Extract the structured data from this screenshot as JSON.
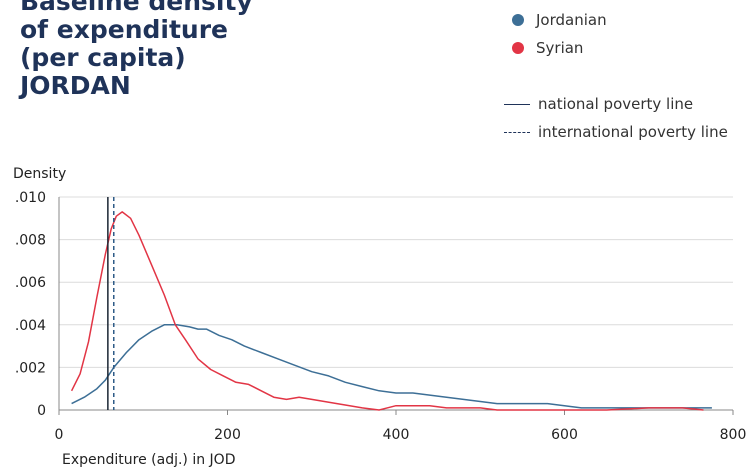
{
  "title_lines": [
    "Baseline density",
    "of expenditure",
    "(per capita)",
    "JORDAN"
  ],
  "legend": {
    "series": [
      {
        "label": "Jordanian",
        "color": "#3d6f96"
      },
      {
        "label": "Syrian",
        "color": "#e23545"
      }
    ],
    "lines": [
      {
        "label": "national poverty line",
        "style": "solid"
      },
      {
        "label": "international poverty line",
        "style": "dashed"
      }
    ]
  },
  "chart_data": {
    "type": "line",
    "title": "Baseline density of expenditure (per capita) JORDAN",
    "xlabel": "Expenditure (adj.) in JOD",
    "ylabel": "Density",
    "xlim": [
      0,
      800
    ],
    "ylim": [
      0,
      0.01
    ],
    "xticks": [
      {
        "v": 0,
        "label": "0"
      },
      {
        "v": 200,
        "label": "200"
      },
      {
        "v": 400,
        "label": "400"
      },
      {
        "v": 600,
        "label": "600"
      },
      {
        "v": 800,
        "label": "800"
      }
    ],
    "yticks": [
      {
        "v": 0,
        "label": "0"
      },
      {
        "v": 0.002,
        "label": ".002"
      },
      {
        "v": 0.004,
        "label": ".004"
      },
      {
        "v": 0.006,
        "label": ".006"
      },
      {
        "v": 0.008,
        "label": ".008"
      },
      {
        "v": 0.01,
        "label": ".010"
      }
    ],
    "grid": true,
    "vlines": [
      {
        "name": "national poverty line",
        "x": 58,
        "style": "solid",
        "color": "#1a2533"
      },
      {
        "name": "international poverty line",
        "x": 65,
        "style": "dashed",
        "color": "#2d5b87"
      }
    ],
    "series": [
      {
        "name": "Jordanian",
        "color": "#3d6f96",
        "points": [
          [
            15,
            0.0003
          ],
          [
            30,
            0.0006
          ],
          [
            45,
            0.001
          ],
          [
            55,
            0.0014
          ],
          [
            65,
            0.002
          ],
          [
            80,
            0.0027
          ],
          [
            95,
            0.0033
          ],
          [
            110,
            0.0037
          ],
          [
            125,
            0.004
          ],
          [
            140,
            0.004
          ],
          [
            155,
            0.0039
          ],
          [
            165,
            0.0038
          ],
          [
            175,
            0.0038
          ],
          [
            190,
            0.0035
          ],
          [
            205,
            0.0033
          ],
          [
            220,
            0.003
          ],
          [
            240,
            0.0027
          ],
          [
            260,
            0.0024
          ],
          [
            280,
            0.0021
          ],
          [
            300,
            0.0018
          ],
          [
            320,
            0.0016
          ],
          [
            340,
            0.0013
          ],
          [
            360,
            0.0011
          ],
          [
            380,
            0.0009
          ],
          [
            400,
            0.0008
          ],
          [
            420,
            0.0008
          ],
          [
            440,
            0.0007
          ],
          [
            460,
            0.0006
          ],
          [
            480,
            0.0005
          ],
          [
            500,
            0.0004
          ],
          [
            520,
            0.0003
          ],
          [
            540,
            0.0003
          ],
          [
            560,
            0.0003
          ],
          [
            580,
            0.0003
          ],
          [
            600,
            0.0002
          ],
          [
            620,
            0.0001
          ],
          [
            650,
            0.0001
          ],
          [
            700,
            0.0001
          ],
          [
            740,
            0.0001
          ],
          [
            775,
            0.0001
          ]
        ]
      },
      {
        "name": "Syrian",
        "color": "#e23545",
        "points": [
          [
            15,
            0.0009
          ],
          [
            25,
            0.0017
          ],
          [
            35,
            0.0032
          ],
          [
            45,
            0.0053
          ],
          [
            55,
            0.0073
          ],
          [
            62,
            0.0085
          ],
          [
            68,
            0.0091
          ],
          [
            75,
            0.0093
          ],
          [
            85,
            0.009
          ],
          [
            95,
            0.0082
          ],
          [
            110,
            0.0068
          ],
          [
            125,
            0.0054
          ],
          [
            138,
            0.004
          ],
          [
            150,
            0.0033
          ],
          [
            165,
            0.0024
          ],
          [
            180,
            0.0019
          ],
          [
            195,
            0.0016
          ],
          [
            210,
            0.0013
          ],
          [
            225,
            0.0012
          ],
          [
            240,
            0.0009
          ],
          [
            255,
            0.0006
          ],
          [
            270,
            0.0005
          ],
          [
            285,
            0.0006
          ],
          [
            300,
            0.0005
          ],
          [
            315,
            0.0004
          ],
          [
            330,
            0.0003
          ],
          [
            345,
            0.0002
          ],
          [
            360,
            0.0001
          ],
          [
            380,
            0.0
          ],
          [
            400,
            0.0002
          ],
          [
            420,
            0.0002
          ],
          [
            440,
            0.0002
          ],
          [
            460,
            0.0001
          ],
          [
            480,
            0.0001
          ],
          [
            500,
            0.0001
          ],
          [
            520,
            0.0
          ],
          [
            560,
            0.0
          ],
          [
            600,
            0.0
          ],
          [
            650,
            0.0
          ],
          [
            700,
            0.0001
          ],
          [
            740,
            0.0001
          ],
          [
            765,
            0.0
          ]
        ]
      }
    ]
  }
}
